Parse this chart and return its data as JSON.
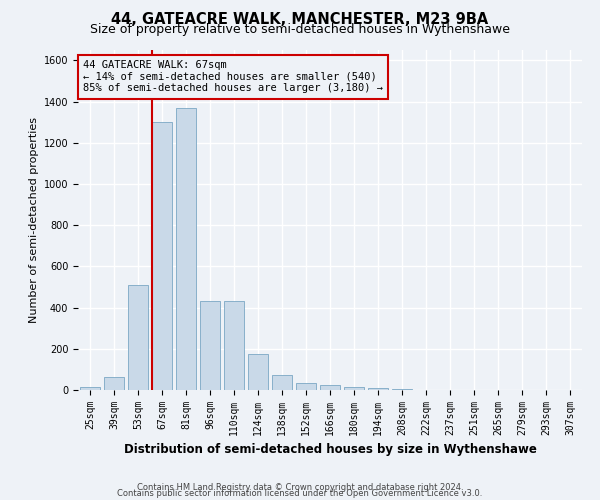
{
  "title_line1": "44, GATEACRE WALK, MANCHESTER, M23 9BA",
  "title_line2": "Size of property relative to semi-detached houses in Wythenshawe",
  "xlabel": "Distribution of semi-detached houses by size in Wythenshawe",
  "ylabel": "Number of semi-detached properties",
  "footer_line1": "Contains HM Land Registry data © Crown copyright and database right 2024.",
  "footer_line2": "Contains public sector information licensed under the Open Government Licence v3.0.",
  "annotation_title": "44 GATEACRE WALK: 67sqm",
  "annotation_line1": "← 14% of semi-detached houses are smaller (540)",
  "annotation_line2": "85% of semi-detached houses are larger (3,180) →",
  "categories": [
    "25sqm",
    "39sqm",
    "53sqm",
    "67sqm",
    "81sqm",
    "96sqm",
    "110sqm",
    "124sqm",
    "138sqm",
    "152sqm",
    "166sqm",
    "180sqm",
    "194sqm",
    "208sqm",
    "222sqm",
    "237sqm",
    "251sqm",
    "265sqm",
    "279sqm",
    "293sqm",
    "307sqm"
  ],
  "values": [
    15,
    65,
    510,
    1300,
    1370,
    430,
    430,
    175,
    75,
    35,
    25,
    15,
    10,
    5,
    0,
    0,
    0,
    0,
    0,
    0,
    0
  ],
  "bar_color": "#c9d9e8",
  "bar_edge_color": "#7ba7c4",
  "vline_color": "#cc0000",
  "vline_x": 3,
  "ylim": [
    0,
    1650
  ],
  "yticks": [
    0,
    200,
    400,
    600,
    800,
    1000,
    1200,
    1400,
    1600
  ],
  "bg_color": "#eef2f7",
  "grid_color": "#ffffff",
  "annotation_box_color": "#cc0000",
  "title1_fontsize": 10.5,
  "title2_fontsize": 9,
  "ylabel_fontsize": 8,
  "xlabel_fontsize": 8.5,
  "tick_fontsize": 7,
  "footer_fontsize": 6,
  "ann_fontsize": 7.5
}
